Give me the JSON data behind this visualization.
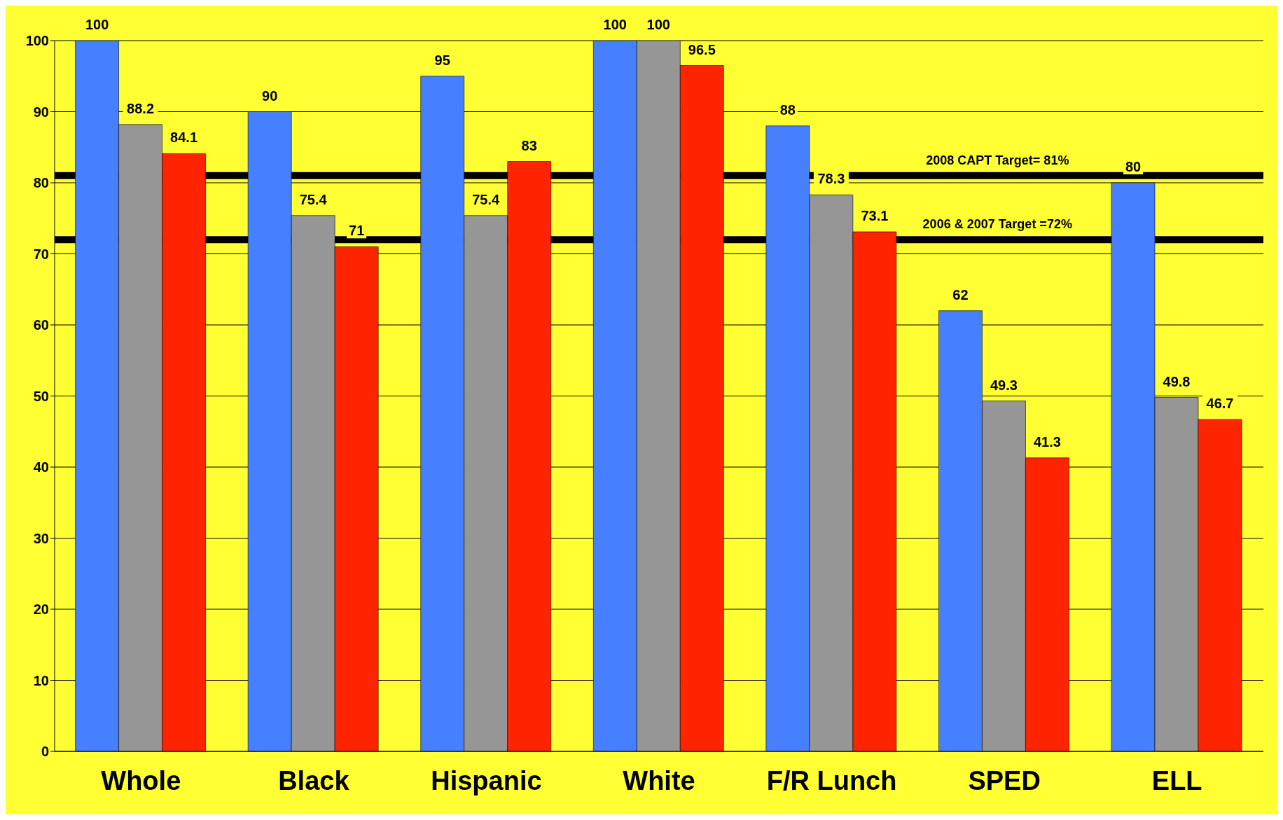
{
  "chart_data": {
    "type": "bar",
    "categories": [
      "Whole",
      "Black",
      "Hispanic",
      "White",
      "F/R Lunch",
      "SPED",
      "ELL"
    ],
    "series": [
      {
        "color": "#4680ff",
        "values": [
          100,
          90,
          95,
          100,
          88,
          62,
          80
        ]
      },
      {
        "color": "#969696",
        "values": [
          88.2,
          75.4,
          75.4,
          100,
          78.3,
          49.3,
          49.8
        ]
      },
      {
        "color": "#ff2400",
        "values": [
          84.1,
          71,
          83,
          96.5,
          73.1,
          41.3,
          46.7
        ]
      }
    ],
    "ylim": [
      0,
      100
    ],
    "yticks": [
      0,
      10,
      20,
      30,
      40,
      50,
      60,
      70,
      80,
      90,
      100
    ],
    "grid": "y",
    "data_labels": true,
    "legend": false,
    "ref_lines": [
      {
        "axis": "y",
        "value": 81,
        "label": "2008 CAPT Target= 81%",
        "color": "#000000"
      },
      {
        "axis": "y",
        "value": 72,
        "label": "2006 & 2007 Target =72%",
        "color": "#000000"
      }
    ]
  }
}
